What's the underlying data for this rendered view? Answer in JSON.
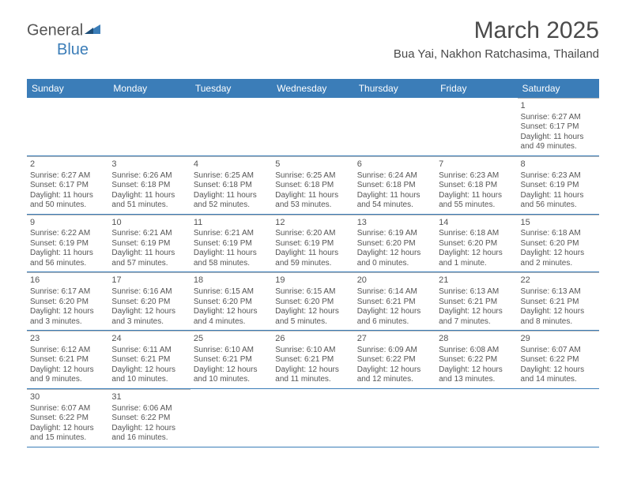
{
  "logo": {
    "part1": "General",
    "part2": "Blue"
  },
  "title": "March 2025",
  "location": "Bua Yai, Nakhon Ratchasima, Thailand",
  "colors": {
    "header_bg": "#3b7db8",
    "header_text": "#ffffff",
    "border": "#3b7db8",
    "cell_border": "#bbbbbb",
    "text": "#555555",
    "page_bg": "#ffffff"
  },
  "fonts": {
    "title_size": 30,
    "location_size": 15,
    "weekday_size": 12,
    "daynum_size": 11,
    "cell_size": 10
  },
  "weekdays": [
    "Sunday",
    "Monday",
    "Tuesday",
    "Wednesday",
    "Thursday",
    "Friday",
    "Saturday"
  ],
  "days": [
    {
      "n": 1,
      "sr": "6:27 AM",
      "ss": "6:17 PM",
      "dl": "11 hours and 49 minutes."
    },
    {
      "n": 2,
      "sr": "6:27 AM",
      "ss": "6:17 PM",
      "dl": "11 hours and 50 minutes."
    },
    {
      "n": 3,
      "sr": "6:26 AM",
      "ss": "6:18 PM",
      "dl": "11 hours and 51 minutes."
    },
    {
      "n": 4,
      "sr": "6:25 AM",
      "ss": "6:18 PM",
      "dl": "11 hours and 52 minutes."
    },
    {
      "n": 5,
      "sr": "6:25 AM",
      "ss": "6:18 PM",
      "dl": "11 hours and 53 minutes."
    },
    {
      "n": 6,
      "sr": "6:24 AM",
      "ss": "6:18 PM",
      "dl": "11 hours and 54 minutes."
    },
    {
      "n": 7,
      "sr": "6:23 AM",
      "ss": "6:18 PM",
      "dl": "11 hours and 55 minutes."
    },
    {
      "n": 8,
      "sr": "6:23 AM",
      "ss": "6:19 PM",
      "dl": "11 hours and 56 minutes."
    },
    {
      "n": 9,
      "sr": "6:22 AM",
      "ss": "6:19 PM",
      "dl": "11 hours and 56 minutes."
    },
    {
      "n": 10,
      "sr": "6:21 AM",
      "ss": "6:19 PM",
      "dl": "11 hours and 57 minutes."
    },
    {
      "n": 11,
      "sr": "6:21 AM",
      "ss": "6:19 PM",
      "dl": "11 hours and 58 minutes."
    },
    {
      "n": 12,
      "sr": "6:20 AM",
      "ss": "6:19 PM",
      "dl": "11 hours and 59 minutes."
    },
    {
      "n": 13,
      "sr": "6:19 AM",
      "ss": "6:20 PM",
      "dl": "12 hours and 0 minutes."
    },
    {
      "n": 14,
      "sr": "6:18 AM",
      "ss": "6:20 PM",
      "dl": "12 hours and 1 minute."
    },
    {
      "n": 15,
      "sr": "6:18 AM",
      "ss": "6:20 PM",
      "dl": "12 hours and 2 minutes."
    },
    {
      "n": 16,
      "sr": "6:17 AM",
      "ss": "6:20 PM",
      "dl": "12 hours and 3 minutes."
    },
    {
      "n": 17,
      "sr": "6:16 AM",
      "ss": "6:20 PM",
      "dl": "12 hours and 3 minutes."
    },
    {
      "n": 18,
      "sr": "6:15 AM",
      "ss": "6:20 PM",
      "dl": "12 hours and 4 minutes."
    },
    {
      "n": 19,
      "sr": "6:15 AM",
      "ss": "6:20 PM",
      "dl": "12 hours and 5 minutes."
    },
    {
      "n": 20,
      "sr": "6:14 AM",
      "ss": "6:21 PM",
      "dl": "12 hours and 6 minutes."
    },
    {
      "n": 21,
      "sr": "6:13 AM",
      "ss": "6:21 PM",
      "dl": "12 hours and 7 minutes."
    },
    {
      "n": 22,
      "sr": "6:13 AM",
      "ss": "6:21 PM",
      "dl": "12 hours and 8 minutes."
    },
    {
      "n": 23,
      "sr": "6:12 AM",
      "ss": "6:21 PM",
      "dl": "12 hours and 9 minutes."
    },
    {
      "n": 24,
      "sr": "6:11 AM",
      "ss": "6:21 PM",
      "dl": "12 hours and 10 minutes."
    },
    {
      "n": 25,
      "sr": "6:10 AM",
      "ss": "6:21 PM",
      "dl": "12 hours and 10 minutes."
    },
    {
      "n": 26,
      "sr": "6:10 AM",
      "ss": "6:21 PM",
      "dl": "12 hours and 11 minutes."
    },
    {
      "n": 27,
      "sr": "6:09 AM",
      "ss": "6:22 PM",
      "dl": "12 hours and 12 minutes."
    },
    {
      "n": 28,
      "sr": "6:08 AM",
      "ss": "6:22 PM",
      "dl": "12 hours and 13 minutes."
    },
    {
      "n": 29,
      "sr": "6:07 AM",
      "ss": "6:22 PM",
      "dl": "12 hours and 14 minutes."
    },
    {
      "n": 30,
      "sr": "6:07 AM",
      "ss": "6:22 PM",
      "dl": "12 hours and 15 minutes."
    },
    {
      "n": 31,
      "sr": "6:06 AM",
      "ss": "6:22 PM",
      "dl": "12 hours and 16 minutes."
    }
  ],
  "labels": {
    "sunrise": "Sunrise:",
    "sunset": "Sunset:",
    "daylight": "Daylight:"
  },
  "start_weekday_index": 6,
  "grid_cols": 7
}
